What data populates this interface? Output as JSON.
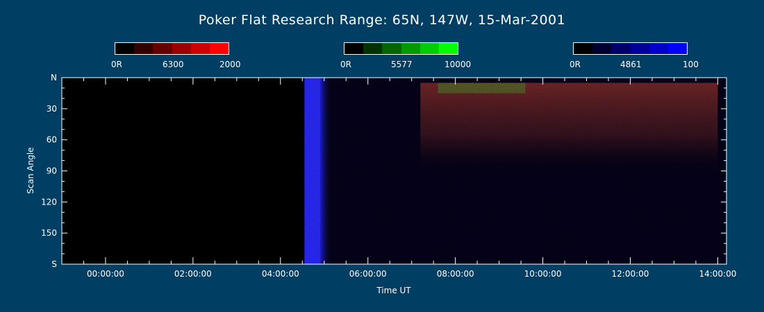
{
  "title": "Poker Flat Research Range: 65N, 147W, 15-Mar-2001",
  "colorbars": [
    {
      "name": "6300",
      "min_label": "0R",
      "center_label": "6300",
      "max_label": "2000",
      "colors": [
        "#000000",
        "#330000",
        "#660000",
        "#990000",
        "#cc0000",
        "#ff0000"
      ]
    },
    {
      "name": "5577",
      "min_label": "0R",
      "center_label": "5577",
      "max_label": "10000",
      "colors": [
        "#000000",
        "#003300",
        "#006600",
        "#009900",
        "#00cc00",
        "#00ff00"
      ]
    },
    {
      "name": "4861",
      "min_label": "0R",
      "center_label": "4861",
      "max_label": "100",
      "colors": [
        "#000000",
        "#000033",
        "#000066",
        "#000099",
        "#0000cc",
        "#0000ff"
      ]
    }
  ],
  "chart_data": {
    "type": "heatmap",
    "title": "Poker Flat Research Range: 65N, 147W, 15-Mar-2001",
    "xlabel": "Time UT",
    "ylabel": "Scan Angle",
    "x_unit": "hours UT",
    "xlim": [
      -1.0,
      14.2
    ],
    "x_ticks": [
      0,
      2,
      4,
      6,
      8,
      10,
      12,
      14
    ],
    "x_tick_labels": [
      "00:00:00",
      "02:00:00",
      "04:00:00",
      "06:00:00",
      "08:00:00",
      "10:00:00",
      "12:00:00",
      "14:00:00"
    ],
    "ylim": [
      0,
      180
    ],
    "y_ticks": [
      0,
      30,
      60,
      90,
      120,
      150,
      180
    ],
    "y_tick_labels": [
      "N",
      "30",
      "60",
      "90",
      "120",
      "150",
      "S"
    ],
    "data_start_hour": 4.55,
    "features": [
      {
        "channel": "4861",
        "color": "#2a2aff",
        "x_start": 4.55,
        "x_end": 5.2,
        "y_start": 0,
        "y_end": 180,
        "level": "high"
      },
      {
        "channel": "6300",
        "color": "#7a2a2a",
        "x_start": 7.2,
        "x_end": 14.0,
        "y_start": 5,
        "y_end": 90,
        "level": "moderate"
      },
      {
        "channel": "5577",
        "color": "#4a8a2a",
        "x_start": 7.6,
        "x_end": 9.6,
        "y_start": 5,
        "y_end": 15,
        "level": "low"
      }
    ]
  }
}
